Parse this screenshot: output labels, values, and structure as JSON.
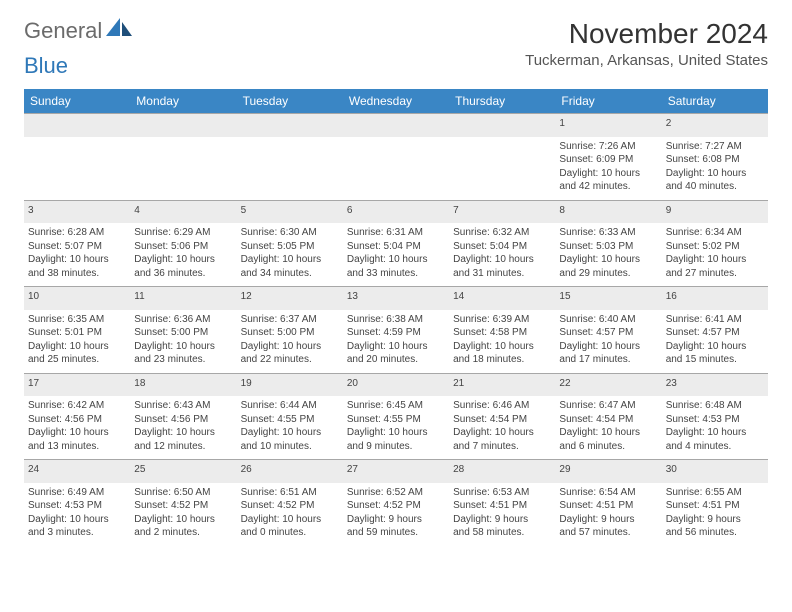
{
  "logo": {
    "part1": "General",
    "part2": "Blue"
  },
  "month_title": "November 2024",
  "location": "Tuckerman, Arkansas, United States",
  "colors": {
    "header_bg": "#3a86c5",
    "header_fg": "#ffffff",
    "daynum_bg": "#ececec",
    "border": "#a7a7a7",
    "logo_gray": "#6b6b6b",
    "logo_blue": "#2f78b8"
  },
  "weekdays": [
    "Sunday",
    "Monday",
    "Tuesday",
    "Wednesday",
    "Thursday",
    "Friday",
    "Saturday"
  ],
  "weeks": [
    [
      null,
      null,
      null,
      null,
      null,
      {
        "d": "1",
        "sr": "Sunrise: 7:26 AM",
        "ss": "Sunset: 6:09 PM",
        "dl1": "Daylight: 10 hours",
        "dl2": "and 42 minutes."
      },
      {
        "d": "2",
        "sr": "Sunrise: 7:27 AM",
        "ss": "Sunset: 6:08 PM",
        "dl1": "Daylight: 10 hours",
        "dl2": "and 40 minutes."
      }
    ],
    [
      {
        "d": "3",
        "sr": "Sunrise: 6:28 AM",
        "ss": "Sunset: 5:07 PM",
        "dl1": "Daylight: 10 hours",
        "dl2": "and 38 minutes."
      },
      {
        "d": "4",
        "sr": "Sunrise: 6:29 AM",
        "ss": "Sunset: 5:06 PM",
        "dl1": "Daylight: 10 hours",
        "dl2": "and 36 minutes."
      },
      {
        "d": "5",
        "sr": "Sunrise: 6:30 AM",
        "ss": "Sunset: 5:05 PM",
        "dl1": "Daylight: 10 hours",
        "dl2": "and 34 minutes."
      },
      {
        "d": "6",
        "sr": "Sunrise: 6:31 AM",
        "ss": "Sunset: 5:04 PM",
        "dl1": "Daylight: 10 hours",
        "dl2": "and 33 minutes."
      },
      {
        "d": "7",
        "sr": "Sunrise: 6:32 AM",
        "ss": "Sunset: 5:04 PM",
        "dl1": "Daylight: 10 hours",
        "dl2": "and 31 minutes."
      },
      {
        "d": "8",
        "sr": "Sunrise: 6:33 AM",
        "ss": "Sunset: 5:03 PM",
        "dl1": "Daylight: 10 hours",
        "dl2": "and 29 minutes."
      },
      {
        "d": "9",
        "sr": "Sunrise: 6:34 AM",
        "ss": "Sunset: 5:02 PM",
        "dl1": "Daylight: 10 hours",
        "dl2": "and 27 minutes."
      }
    ],
    [
      {
        "d": "10",
        "sr": "Sunrise: 6:35 AM",
        "ss": "Sunset: 5:01 PM",
        "dl1": "Daylight: 10 hours",
        "dl2": "and 25 minutes."
      },
      {
        "d": "11",
        "sr": "Sunrise: 6:36 AM",
        "ss": "Sunset: 5:00 PM",
        "dl1": "Daylight: 10 hours",
        "dl2": "and 23 minutes."
      },
      {
        "d": "12",
        "sr": "Sunrise: 6:37 AM",
        "ss": "Sunset: 5:00 PM",
        "dl1": "Daylight: 10 hours",
        "dl2": "and 22 minutes."
      },
      {
        "d": "13",
        "sr": "Sunrise: 6:38 AM",
        "ss": "Sunset: 4:59 PM",
        "dl1": "Daylight: 10 hours",
        "dl2": "and 20 minutes."
      },
      {
        "d": "14",
        "sr": "Sunrise: 6:39 AM",
        "ss": "Sunset: 4:58 PM",
        "dl1": "Daylight: 10 hours",
        "dl2": "and 18 minutes."
      },
      {
        "d": "15",
        "sr": "Sunrise: 6:40 AM",
        "ss": "Sunset: 4:57 PM",
        "dl1": "Daylight: 10 hours",
        "dl2": "and 17 minutes."
      },
      {
        "d": "16",
        "sr": "Sunrise: 6:41 AM",
        "ss": "Sunset: 4:57 PM",
        "dl1": "Daylight: 10 hours",
        "dl2": "and 15 minutes."
      }
    ],
    [
      {
        "d": "17",
        "sr": "Sunrise: 6:42 AM",
        "ss": "Sunset: 4:56 PM",
        "dl1": "Daylight: 10 hours",
        "dl2": "and 13 minutes."
      },
      {
        "d": "18",
        "sr": "Sunrise: 6:43 AM",
        "ss": "Sunset: 4:56 PM",
        "dl1": "Daylight: 10 hours",
        "dl2": "and 12 minutes."
      },
      {
        "d": "19",
        "sr": "Sunrise: 6:44 AM",
        "ss": "Sunset: 4:55 PM",
        "dl1": "Daylight: 10 hours",
        "dl2": "and 10 minutes."
      },
      {
        "d": "20",
        "sr": "Sunrise: 6:45 AM",
        "ss": "Sunset: 4:55 PM",
        "dl1": "Daylight: 10 hours",
        "dl2": "and 9 minutes."
      },
      {
        "d": "21",
        "sr": "Sunrise: 6:46 AM",
        "ss": "Sunset: 4:54 PM",
        "dl1": "Daylight: 10 hours",
        "dl2": "and 7 minutes."
      },
      {
        "d": "22",
        "sr": "Sunrise: 6:47 AM",
        "ss": "Sunset: 4:54 PM",
        "dl1": "Daylight: 10 hours",
        "dl2": "and 6 minutes."
      },
      {
        "d": "23",
        "sr": "Sunrise: 6:48 AM",
        "ss": "Sunset: 4:53 PM",
        "dl1": "Daylight: 10 hours",
        "dl2": "and 4 minutes."
      }
    ],
    [
      {
        "d": "24",
        "sr": "Sunrise: 6:49 AM",
        "ss": "Sunset: 4:53 PM",
        "dl1": "Daylight: 10 hours",
        "dl2": "and 3 minutes."
      },
      {
        "d": "25",
        "sr": "Sunrise: 6:50 AM",
        "ss": "Sunset: 4:52 PM",
        "dl1": "Daylight: 10 hours",
        "dl2": "and 2 minutes."
      },
      {
        "d": "26",
        "sr": "Sunrise: 6:51 AM",
        "ss": "Sunset: 4:52 PM",
        "dl1": "Daylight: 10 hours",
        "dl2": "and 0 minutes."
      },
      {
        "d": "27",
        "sr": "Sunrise: 6:52 AM",
        "ss": "Sunset: 4:52 PM",
        "dl1": "Daylight: 9 hours",
        "dl2": "and 59 minutes."
      },
      {
        "d": "28",
        "sr": "Sunrise: 6:53 AM",
        "ss": "Sunset: 4:51 PM",
        "dl1": "Daylight: 9 hours",
        "dl2": "and 58 minutes."
      },
      {
        "d": "29",
        "sr": "Sunrise: 6:54 AM",
        "ss": "Sunset: 4:51 PM",
        "dl1": "Daylight: 9 hours",
        "dl2": "and 57 minutes."
      },
      {
        "d": "30",
        "sr": "Sunrise: 6:55 AM",
        "ss": "Sunset: 4:51 PM",
        "dl1": "Daylight: 9 hours",
        "dl2": "and 56 minutes."
      }
    ]
  ]
}
